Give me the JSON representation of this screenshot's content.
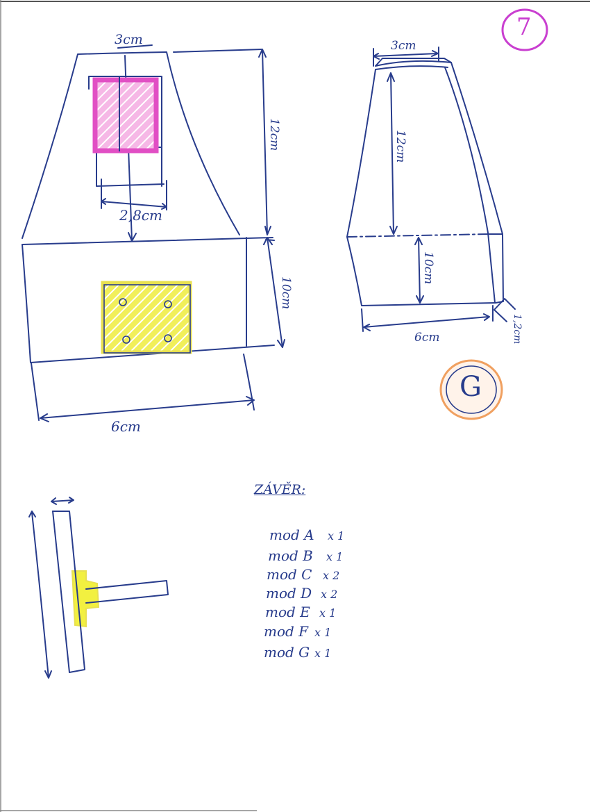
{
  "page_number": "7",
  "module_letter": "G",
  "front_view": {
    "top_width": "3cm",
    "upper_height": "12cm",
    "opening_width": "2,8cm",
    "lower_height": "10cm",
    "bottom_width": "6cm"
  },
  "side_view": {
    "top_width": "3cm",
    "upper_height": "12cm",
    "lower_height": "10cm",
    "bottom_width": "6cm",
    "thickness": "1,2cm"
  },
  "summary": {
    "title": "ZÁVĚR:",
    "items": [
      {
        "name": "mod A",
        "qty": "x 1"
      },
      {
        "name": "mod B",
        "qty": "x 1"
      },
      {
        "name": "mod C",
        "qty": "x 2"
      },
      {
        "name": "mod D",
        "qty": "x 2"
      },
      {
        "name": "mod E",
        "qty": "x 1"
      },
      {
        "name": "mod F",
        "qty": "x 1"
      },
      {
        "name": "mod G",
        "qty": "x 1"
      }
    ]
  },
  "colors": {
    "ink": "#283c8c",
    "pink": "#e14fc4",
    "yellow": "#f2f040",
    "orange": "#f0a060"
  }
}
